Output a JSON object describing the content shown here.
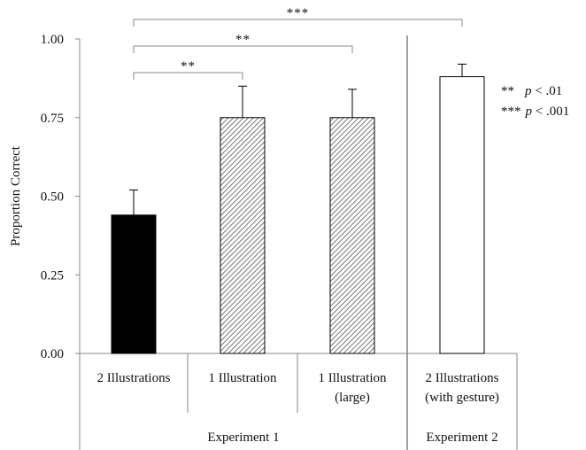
{
  "chart_data": {
    "type": "bar",
    "title": "",
    "ylabel": "Proportion Correct",
    "xlabel": "",
    "ylim": [
      0,
      1
    ],
    "yticks": [
      "0.00",
      "0.25",
      "0.50",
      "0.75",
      "1.00"
    ],
    "ytick_values": [
      0,
      0.25,
      0.5,
      0.75,
      1.0
    ],
    "grid": false,
    "categories": [
      {
        "lines": [
          "2 Illustrations"
        ],
        "value": 0.44,
        "error": 0.08,
        "fill": "solid-black"
      },
      {
        "lines": [
          "1 Illustration"
        ],
        "value": 0.75,
        "error": 0.1,
        "fill": "diagonal-hatch"
      },
      {
        "lines": [
          "1 Illustration",
          "(large)"
        ],
        "value": 0.75,
        "error": 0.09,
        "fill": "diagonal-hatch"
      },
      {
        "lines": [
          "2 Illustrations",
          "(with gesture)"
        ],
        "value": 0.88,
        "error": 0.04,
        "fill": "white"
      }
    ],
    "groups": [
      {
        "label": "Experiment 1",
        "categories": [
          0,
          1,
          2
        ]
      },
      {
        "label": "Experiment 2",
        "categories": [
          3
        ]
      }
    ],
    "significance": [
      {
        "from": 0,
        "to": 1,
        "label": "**"
      },
      {
        "from": 0,
        "to": 2,
        "label": "**"
      },
      {
        "from": 0,
        "to": 3,
        "label": "***"
      }
    ],
    "legend": [
      {
        "stars": "**",
        "p": "p",
        "rest": " < .01"
      },
      {
        "stars": "***",
        "p": "p",
        "rest": " < .001"
      }
    ],
    "colors": {
      "bar_black": "#000000",
      "axis": "#888888",
      "hatch": "#555555"
    }
  }
}
